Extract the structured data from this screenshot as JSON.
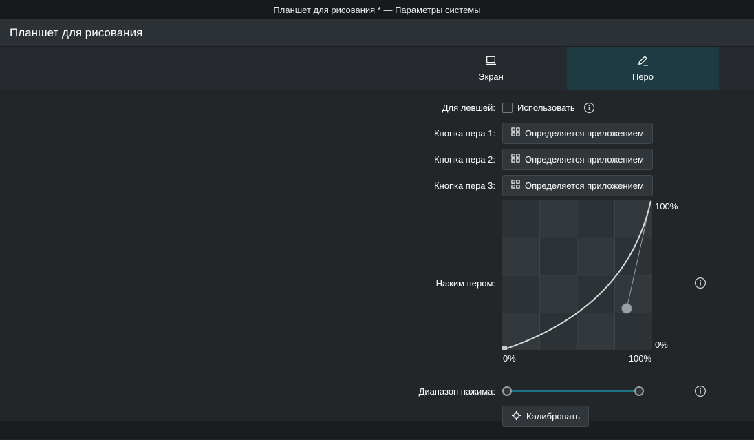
{
  "titlebar": {
    "title": "Планшет для рисования * — Параметры системы"
  },
  "header": {
    "title": "Планшет для рисования"
  },
  "tabs": {
    "screen": {
      "label": "Экран"
    },
    "pen": {
      "label": "Перо"
    }
  },
  "rows": {
    "left_handed": {
      "label": "Для левшей:",
      "checkbox_label": "Использовать",
      "checked": false
    },
    "pen_button_1": {
      "label": "Кнопка пера 1:",
      "value": "Определяется приложением"
    },
    "pen_button_2": {
      "label": "Кнопка пера 2:",
      "value": "Определяется приложением"
    },
    "pen_button_3": {
      "label": "Кнопка пера 3:",
      "value": "Определяется приложением"
    },
    "pressure_curve": {
      "label": "Нажим пером:",
      "y_max_label": "100%",
      "y_min_label": "0%",
      "x_min_label": "0%",
      "x_max_label": "100%",
      "control_point": {
        "x": 0.83,
        "y": 0.28
      }
    },
    "pressure_range": {
      "label": "Диапазон нажима:",
      "low": 0,
      "high": 100
    },
    "calibrate": {
      "label": "Калибровать"
    }
  },
  "colors": {
    "accent": "#1d7484",
    "active_tab_bg": "#1e3a43"
  }
}
